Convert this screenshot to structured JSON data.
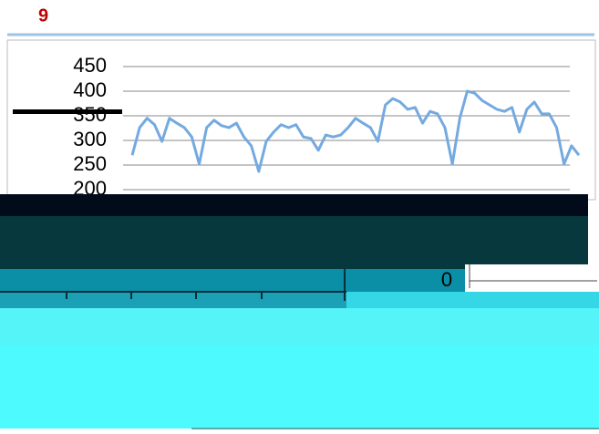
{
  "slide_number": "9",
  "chart_data": {
    "type": "line",
    "values": [
      270,
      326,
      345,
      332,
      298,
      345,
      335,
      326,
      307,
      252,
      326,
      341,
      330,
      326,
      335,
      307,
      289,
      237,
      298,
      317,
      332,
      326,
      332,
      307,
      304,
      280,
      311,
      307,
      311,
      326,
      345,
      335,
      326,
      298,
      372,
      385,
      378,
      363,
      367,
      335,
      359,
      354,
      326,
      252,
      345,
      400,
      396,
      381,
      372,
      363,
      359,
      367,
      317,
      363,
      378,
      354,
      354,
      326,
      252,
      289,
      270
    ],
    "color": "#74aae0",
    "ylim": [
      200,
      450
    ],
    "yticks": [
      200,
      250,
      300,
      350,
      400,
      450
    ],
    "grid": true
  },
  "second_chart_label": "0"
}
